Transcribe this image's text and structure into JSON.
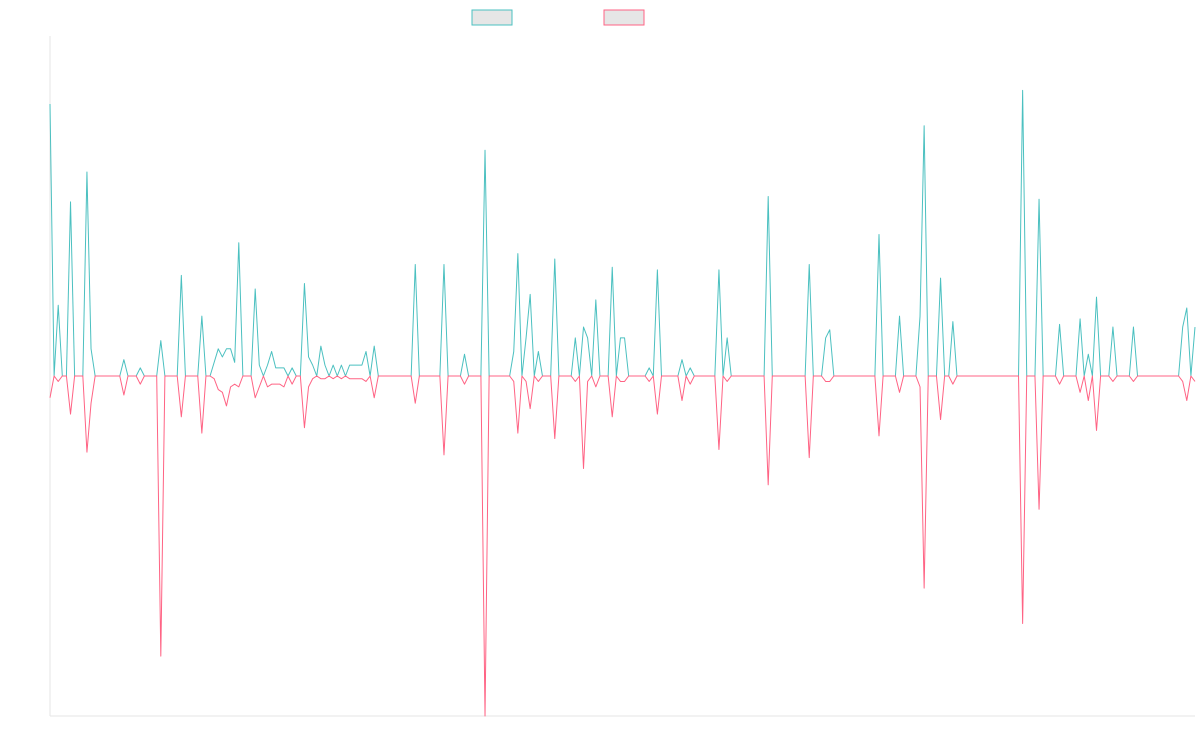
{
  "chart_data": {
    "type": "line",
    "title": "",
    "xlabel": "",
    "ylabel": "",
    "grid": false,
    "legend": "top-center",
    "ylim": [
      -1.25,
      1.25
    ],
    "series": [
      {
        "name": "",
        "color": "#4bc0c0",
        "fill": "#e6e6e6",
        "points": [
          [
            0,
            1.0
          ],
          [
            2,
            0.26
          ],
          [
            5,
            0.64
          ],
          [
            9,
            0.75
          ],
          [
            10,
            0.1
          ],
          [
            18,
            0.06
          ],
          [
            22,
            0.03
          ],
          [
            27,
            0.13
          ],
          [
            32,
            0.37
          ],
          [
            37,
            0.22
          ],
          [
            40,
            0.05
          ],
          [
            41,
            0.1
          ],
          [
            42,
            0.07
          ],
          [
            43,
            0.1
          ],
          [
            44,
            0.1
          ],
          [
            45,
            0.05
          ],
          [
            46,
            0.49
          ],
          [
            50,
            0.32
          ],
          [
            51,
            0.04
          ],
          [
            53,
            0.04
          ],
          [
            54,
            0.09
          ],
          [
            55,
            0.03
          ],
          [
            56,
            0.03
          ],
          [
            57,
            0.03
          ],
          [
            59,
            0.03
          ],
          [
            62,
            0.34
          ],
          [
            63,
            0.07
          ],
          [
            64,
            0.04
          ],
          [
            66,
            0.11
          ],
          [
            67,
            0.04
          ],
          [
            69,
            0.04
          ],
          [
            71,
            0.04
          ],
          [
            73,
            0.04
          ],
          [
            74,
            0.04
          ],
          [
            75,
            0.04
          ],
          [
            76,
            0.04
          ],
          [
            77,
            0.09
          ],
          [
            79,
            0.11
          ],
          [
            89,
            0.41
          ],
          [
            96,
            0.41
          ],
          [
            101,
            0.08
          ],
          [
            106,
            0.83
          ],
          [
            113,
            0.09
          ],
          [
            114,
            0.45
          ],
          [
            116,
            0.14
          ],
          [
            117,
            0.3
          ],
          [
            119,
            0.09
          ],
          [
            123,
            0.43
          ],
          [
            128,
            0.14
          ],
          [
            130,
            0.18
          ],
          [
            131,
            0.14
          ],
          [
            133,
            0.28
          ],
          [
            137,
            0.4
          ],
          [
            139,
            0.14
          ],
          [
            140,
            0.14
          ],
          [
            146,
            0.03
          ],
          [
            148,
            0.39
          ],
          [
            154,
            0.06
          ],
          [
            156,
            0.03
          ],
          [
            163,
            0.39
          ],
          [
            165,
            0.14
          ],
          [
            175,
            0.66
          ],
          [
            185,
            0.41
          ],
          [
            189,
            0.14
          ],
          [
            190,
            0.17
          ],
          [
            202,
            0.52
          ],
          [
            207,
            0.22
          ],
          [
            212,
            0.22
          ],
          [
            213,
            0.92
          ],
          [
            217,
            0.36
          ],
          [
            220,
            0.2
          ],
          [
            237,
            1.05
          ],
          [
            241,
            0.65
          ],
          [
            246,
            0.19
          ],
          [
            251,
            0.21
          ],
          [
            253,
            0.08
          ],
          [
            255,
            0.29
          ],
          [
            259,
            0.18
          ],
          [
            264,
            0.18
          ],
          [
            276,
            0.18
          ],
          [
            277,
            0.25
          ],
          [
            279,
            0.18
          ]
        ]
      },
      {
        "name": "",
        "color": "#ff6384",
        "fill": "#e6e6e6",
        "points": [
          [
            0,
            -0.08
          ],
          [
            2,
            -0.02
          ],
          [
            5,
            -0.14
          ],
          [
            9,
            -0.28
          ],
          [
            10,
            -0.1
          ],
          [
            18,
            -0.07
          ],
          [
            22,
            -0.03
          ],
          [
            27,
            -1.03
          ],
          [
            32,
            -0.15
          ],
          [
            37,
            -0.21
          ],
          [
            40,
            -0.01
          ],
          [
            41,
            -0.05
          ],
          [
            42,
            -0.06
          ],
          [
            43,
            -0.11
          ],
          [
            44,
            -0.04
          ],
          [
            45,
            -0.03
          ],
          [
            46,
            -0.04
          ],
          [
            50,
            -0.08
          ],
          [
            51,
            -0.04
          ],
          [
            53,
            -0.04
          ],
          [
            54,
            -0.03
          ],
          [
            55,
            -0.03
          ],
          [
            56,
            -0.03
          ],
          [
            57,
            -0.04
          ],
          [
            59,
            -0.03
          ],
          [
            62,
            -0.19
          ],
          [
            63,
            -0.04
          ],
          [
            64,
            -0.01
          ],
          [
            66,
            -0.01
          ],
          [
            67,
            -0.01
          ],
          [
            69,
            -0.01
          ],
          [
            71,
            -0.01
          ],
          [
            73,
            -0.01
          ],
          [
            74,
            -0.01
          ],
          [
            75,
            -0.01
          ],
          [
            76,
            -0.01
          ],
          [
            77,
            -0.02
          ],
          [
            79,
            -0.08
          ],
          [
            89,
            -0.1
          ],
          [
            96,
            -0.29
          ],
          [
            101,
            -0.03
          ],
          [
            106,
            -1.25
          ],
          [
            113,
            -0.02
          ],
          [
            114,
            -0.21
          ],
          [
            116,
            -0.02
          ],
          [
            117,
            -0.12
          ],
          [
            119,
            -0.02
          ],
          [
            123,
            -0.23
          ],
          [
            128,
            -0.02
          ],
          [
            130,
            -0.34
          ],
          [
            131,
            -0.02
          ],
          [
            133,
            -0.04
          ],
          [
            137,
            -0.15
          ],
          [
            139,
            -0.02
          ],
          [
            140,
            -0.02
          ],
          [
            146,
            -0.02
          ],
          [
            148,
            -0.14
          ],
          [
            154,
            -0.09
          ],
          [
            156,
            -0.03
          ],
          [
            163,
            -0.27
          ],
          [
            165,
            -0.02
          ],
          [
            175,
            -0.4
          ],
          [
            185,
            -0.3
          ],
          [
            189,
            -0.02
          ],
          [
            190,
            -0.02
          ],
          [
            202,
            -0.22
          ],
          [
            207,
            -0.06
          ],
          [
            212,
            -0.04
          ],
          [
            213,
            -0.78
          ],
          [
            217,
            -0.16
          ],
          [
            220,
            -0.03
          ],
          [
            237,
            -0.91
          ],
          [
            241,
            -0.49
          ],
          [
            246,
            -0.03
          ],
          [
            251,
            -0.06
          ],
          [
            253,
            -0.09
          ],
          [
            255,
            -0.2
          ],
          [
            259,
            -0.02
          ],
          [
            264,
            -0.02
          ],
          [
            276,
            -0.02
          ],
          [
            277,
            -0.09
          ],
          [
            279,
            -0.02
          ]
        ]
      }
    ]
  }
}
